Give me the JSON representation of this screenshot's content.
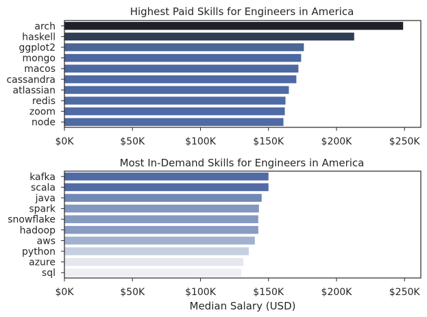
{
  "chart_data": [
    {
      "type": "bar",
      "orientation": "horizontal",
      "title": "Highest Paid Skills for Engineers in America",
      "xlabel": "",
      "ylabel": "",
      "xlim": [
        0,
        262000
      ],
      "xticks": [
        0,
        50000,
        100000,
        150000,
        200000,
        250000
      ],
      "xtick_labels": [
        "$0K",
        "$50K",
        "$100K",
        "$150K",
        "$200K",
        "$250K"
      ],
      "grid": false,
      "categories": [
        "arch",
        "haskell",
        "ggplot2",
        "mongo",
        "macos",
        "cassandra",
        "atlassian",
        "redis",
        "zoom",
        "node"
      ],
      "values": [
        249000,
        213000,
        176000,
        174000,
        172000,
        170500,
        165000,
        162500,
        162000,
        161000
      ],
      "colors": [
        "#1e2127",
        "#2f3d55",
        "#4b6595",
        "#4d67a0",
        "#4e68a3",
        "#4e69a4",
        "#4f6aa5",
        "#4f6aa5",
        "#4f6aa5",
        "#4f6aa5"
      ]
    },
    {
      "type": "bar",
      "orientation": "horizontal",
      "title": "Most In-Demand Skills for Engineers in America",
      "xlabel": "Median Salary (USD)",
      "ylabel": "",
      "xlim": [
        0,
        262000
      ],
      "xticks": [
        0,
        50000,
        100000,
        150000,
        200000,
        250000
      ],
      "xtick_labels": [
        "$0K",
        "$50K",
        "$100K",
        "$150K",
        "$200K",
        "$250K"
      ],
      "grid": false,
      "categories": [
        "kafka",
        "scala",
        "java",
        "spark",
        "snowflake",
        "hadoop",
        "aws",
        "python",
        "azure",
        "sql"
      ],
      "values": [
        150000,
        150000,
        145000,
        143000,
        142500,
        142500,
        140000,
        135500,
        131500,
        130000
      ],
      "colors": [
        "#4f6aa5",
        "#526ca6",
        "#7088b5",
        "#8398c0",
        "#8699c1",
        "#889bc2",
        "#a1b1d0",
        "#c6cfe0",
        "#e4e7ee",
        "#eeeff2"
      ]
    }
  ]
}
